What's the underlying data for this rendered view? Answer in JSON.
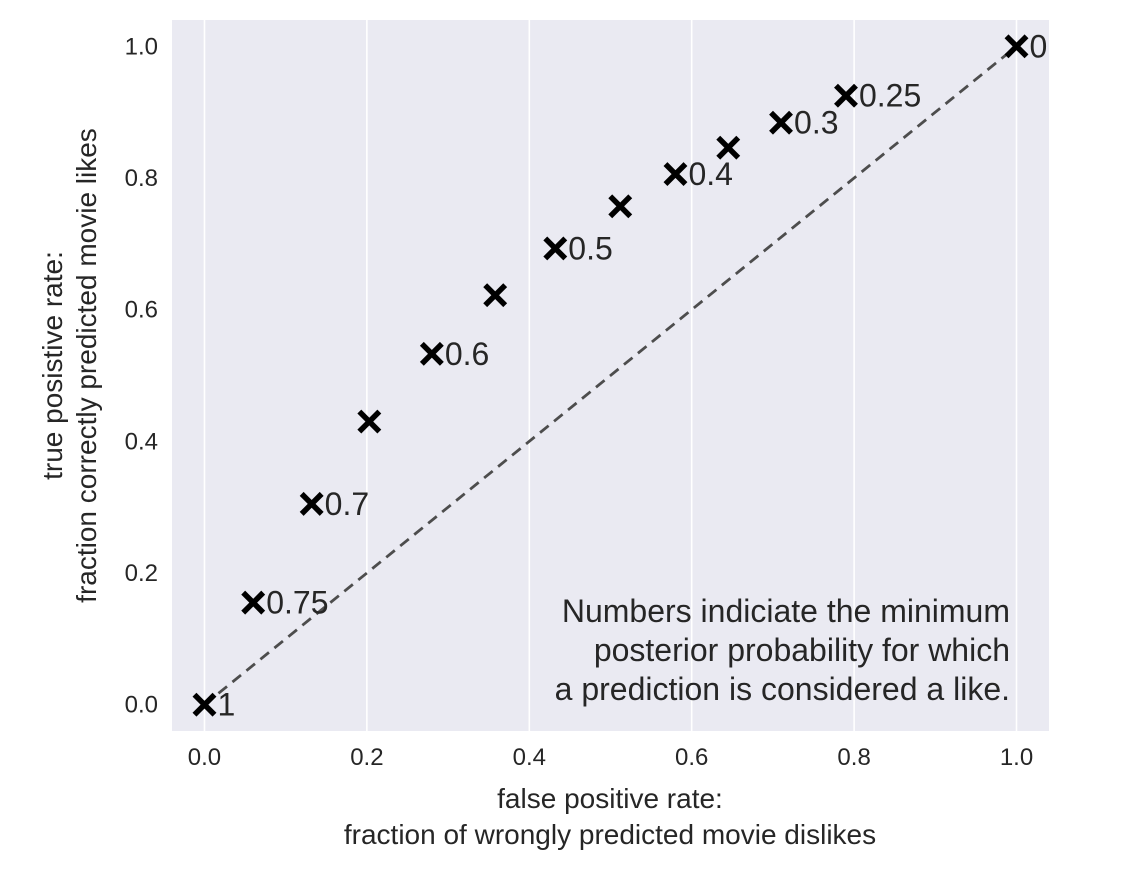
{
  "chart_data": {
    "type": "scatter",
    "title": "",
    "xlabel_lines": [
      "false positive rate:",
      "fraction of wrongly predicted movie dislikes"
    ],
    "ylabel_lines": [
      "true posistive rate:",
      "fraction correctly predicted movie likes"
    ],
    "xlim": [
      -0.04,
      1.04
    ],
    "ylim": [
      -0.04,
      1.04
    ],
    "x_ticks": [
      0.0,
      0.2,
      0.4,
      0.6,
      0.8,
      1.0
    ],
    "y_ticks": [
      0.0,
      0.2,
      0.4,
      0.6,
      0.8,
      1.0
    ],
    "x_tick_labels": [
      "0.0",
      "0.2",
      "0.4",
      "0.6",
      "0.8",
      "1.0"
    ],
    "y_tick_labels": [
      "0.0",
      "0.2",
      "0.4",
      "0.6",
      "0.8",
      "1.0"
    ],
    "grid": true,
    "vertical_grid_only": true,
    "marker": "x",
    "marker_color": "#000000",
    "background_color": "#EAEAF2",
    "reference_line": {
      "from": [
        0,
        0
      ],
      "to": [
        1,
        1
      ],
      "style": "dashed",
      "color": "#4d4d4d"
    },
    "points": [
      {
        "x": 0.0,
        "y": 0.0,
        "label": "1"
      },
      {
        "x": 0.06,
        "y": 0.155,
        "label": "0.75"
      },
      {
        "x": 0.132,
        "y": 0.305,
        "label": "0.7"
      },
      {
        "x": 0.203,
        "y": 0.43,
        "label": ""
      },
      {
        "x": 0.28,
        "y": 0.533,
        "label": "0.6"
      },
      {
        "x": 0.358,
        "y": 0.622,
        "label": ""
      },
      {
        "x": 0.432,
        "y": 0.693,
        "label": "0.5"
      },
      {
        "x": 0.512,
        "y": 0.757,
        "label": ""
      },
      {
        "x": 0.58,
        "y": 0.806,
        "label": "0.4"
      },
      {
        "x": 0.645,
        "y": 0.846,
        "label": ""
      },
      {
        "x": 0.71,
        "y": 0.884,
        "label": "0.3"
      },
      {
        "x": 0.79,
        "y": 0.925,
        "label": "0.25"
      },
      {
        "x": 1.0,
        "y": 1.0,
        "label": "0"
      }
    ],
    "annotation_lines": [
      "Numbers indiciate the minimum",
      "posterior probability for which",
      "a prediction is considered a like."
    ]
  }
}
